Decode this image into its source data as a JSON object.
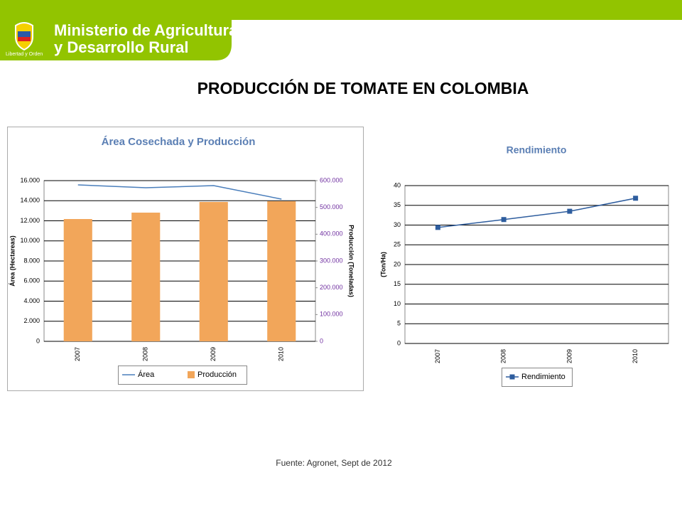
{
  "header": {
    "ministry_line1": "Ministerio de Agricultura",
    "ministry_line2": "y Desarrollo Rural",
    "motto": "Libertad y Orden"
  },
  "title": "PRODUCCIÓN DE TOMATE EN COLOMBIA",
  "source": "Fuente: Agronet, Sept de 2012",
  "chart_data": [
    {
      "type": "bar",
      "title": "Área Cosechada y Producción",
      "ylabel": "Área (Hectareas)",
      "y2label": "Producción (Toneladas)",
      "categories": [
        "2007",
        "2008",
        "2009",
        "2010"
      ],
      "series": [
        {
          "name": "Área",
          "type": "line",
          "color": "#4a7ebb",
          "values": [
            15575,
            15290,
            15500,
            14160
          ]
        },
        {
          "name": "Producción",
          "type": "bar",
          "axis": "y2",
          "color": "#f2a65a",
          "values": [
            456600,
            480500,
            520400,
            523000
          ]
        }
      ],
      "ylim": [
        0,
        16000
      ],
      "yticks": [
        0,
        {
          "value": 2000,
          "label": "2.000"
        },
        {
          "value": 4000,
          "label": "4.000"
        },
        {
          "value": 6000,
          "label": "6.000"
        },
        {
          "value": 8000,
          "label": "8.000"
        },
        {
          "value": 10000,
          "label": "10.000"
        },
        {
          "value": 12000,
          "label": "12.000"
        },
        {
          "value": 14000,
          "label": "14.000"
        },
        {
          "value": 16000,
          "label": "16.000"
        }
      ],
      "y2lim": [
        0,
        600000
      ],
      "y2ticks": [
        0,
        {
          "value": 100000,
          "label": "100.000"
        },
        {
          "value": 200000,
          "label": "200.000"
        },
        {
          "value": 300000,
          "label": "300.000"
        },
        {
          "value": 400000,
          "label": "400.000"
        },
        {
          "value": 500000,
          "label": "500.000"
        },
        {
          "value": 600000,
          "label": "600.000"
        }
      ],
      "grid": true,
      "legend": "bottom"
    },
    {
      "type": "line",
      "title": "Rendimiento",
      "ylabel": "(Ton/Ha)",
      "categories": [
        "2007",
        "2008",
        "2009",
        "2010"
      ],
      "series": [
        {
          "name": "Rendimiento",
          "color": "#2e5d9e",
          "marker": "square",
          "values": [
            29.4,
            31.4,
            33.5,
            36.8
          ]
        }
      ],
      "ylim": [
        0,
        40
      ],
      "yticks": [
        0,
        5,
        10,
        15,
        20,
        25,
        30,
        35,
        40
      ],
      "grid": true,
      "legend": "bottom"
    }
  ]
}
